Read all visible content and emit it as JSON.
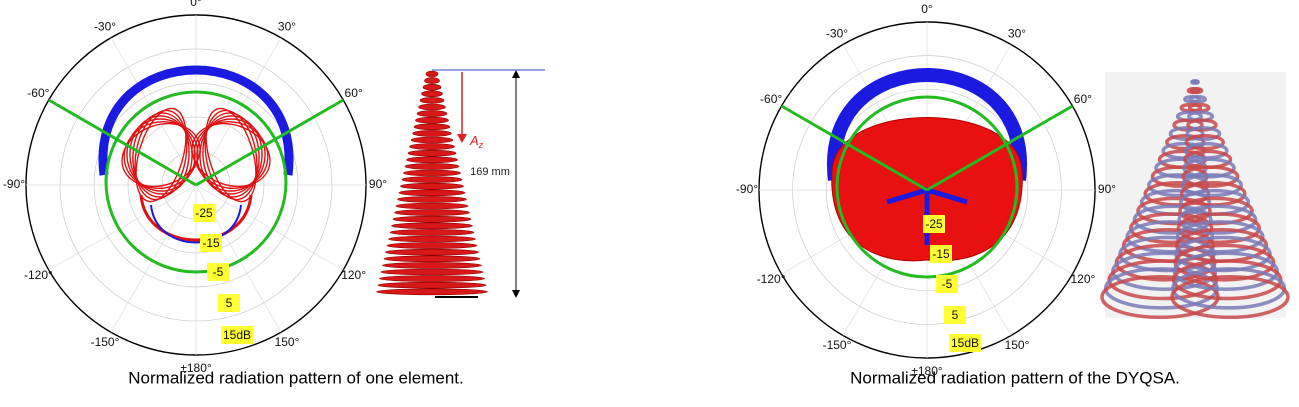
{
  "figures": [
    {
      "angle_labels": [
        "0°",
        "30°",
        "60°",
        "90°",
        "120°",
        "150°",
        "±180°",
        "-150°",
        "-120°",
        "-90°",
        "-60°",
        "-30°"
      ],
      "radial_labels": [
        "-25",
        "-15",
        "-5",
        "5",
        "15dB"
      ],
      "caption": "Normalized radiation pattern of one element."
    },
    {
      "angle_labels": [
        "0°",
        "30°",
        "60°",
        "90°",
        "120°",
        "150°",
        "±180°",
        "-150°",
        "-120°",
        "-90°",
        "-60°",
        "-30°"
      ],
      "radial_labels": [
        "-25",
        "-15",
        "-5",
        "5",
        "15dB"
      ],
      "caption": "Normalized radiation pattern of the DYQSA."
    }
  ],
  "antenna_dimension": {
    "height": "169 mm",
    "vector": "A",
    "vector_subscript": "z"
  }
}
